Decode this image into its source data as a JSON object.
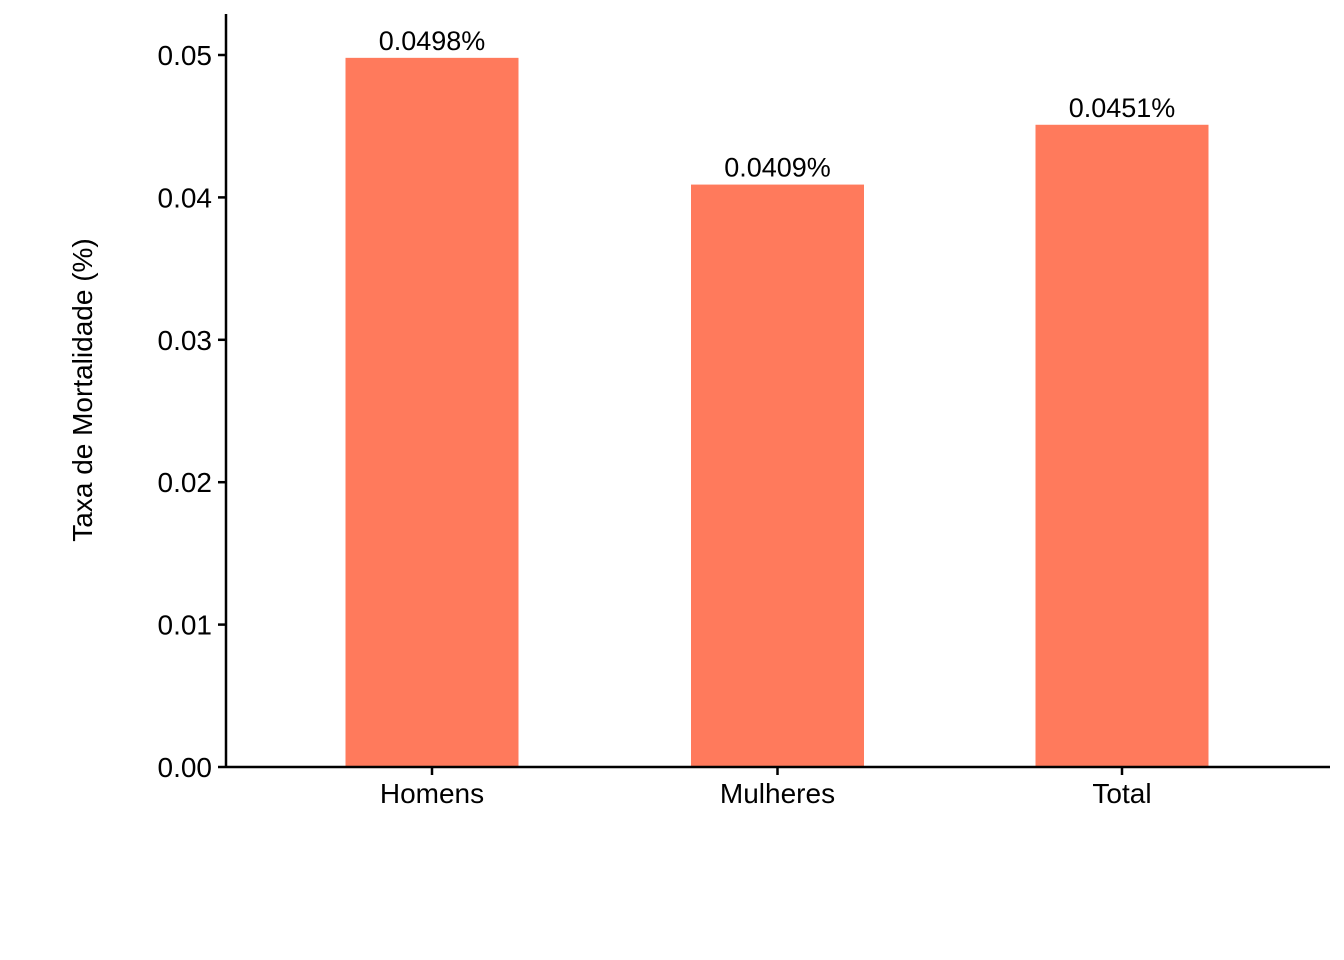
{
  "chart_data": {
    "type": "bar",
    "categories": [
      "Homens",
      "Mulheres",
      "Total"
    ],
    "values": [
      0.0498,
      0.0409,
      0.0451
    ],
    "data_labels": [
      "0.0498%",
      "0.0409%",
      "0.0451%"
    ],
    "title": "",
    "xlabel": "",
    "ylabel": "Taxa de Mortalidade (%)",
    "ylim": [
      0,
      0.05
    ],
    "yticks": [
      "0.00",
      "0.01",
      "0.02",
      "0.03",
      "0.04",
      "0.05"
    ],
    "bar_color": "#FF7A5C",
    "grid": false,
    "legend": "none"
  }
}
